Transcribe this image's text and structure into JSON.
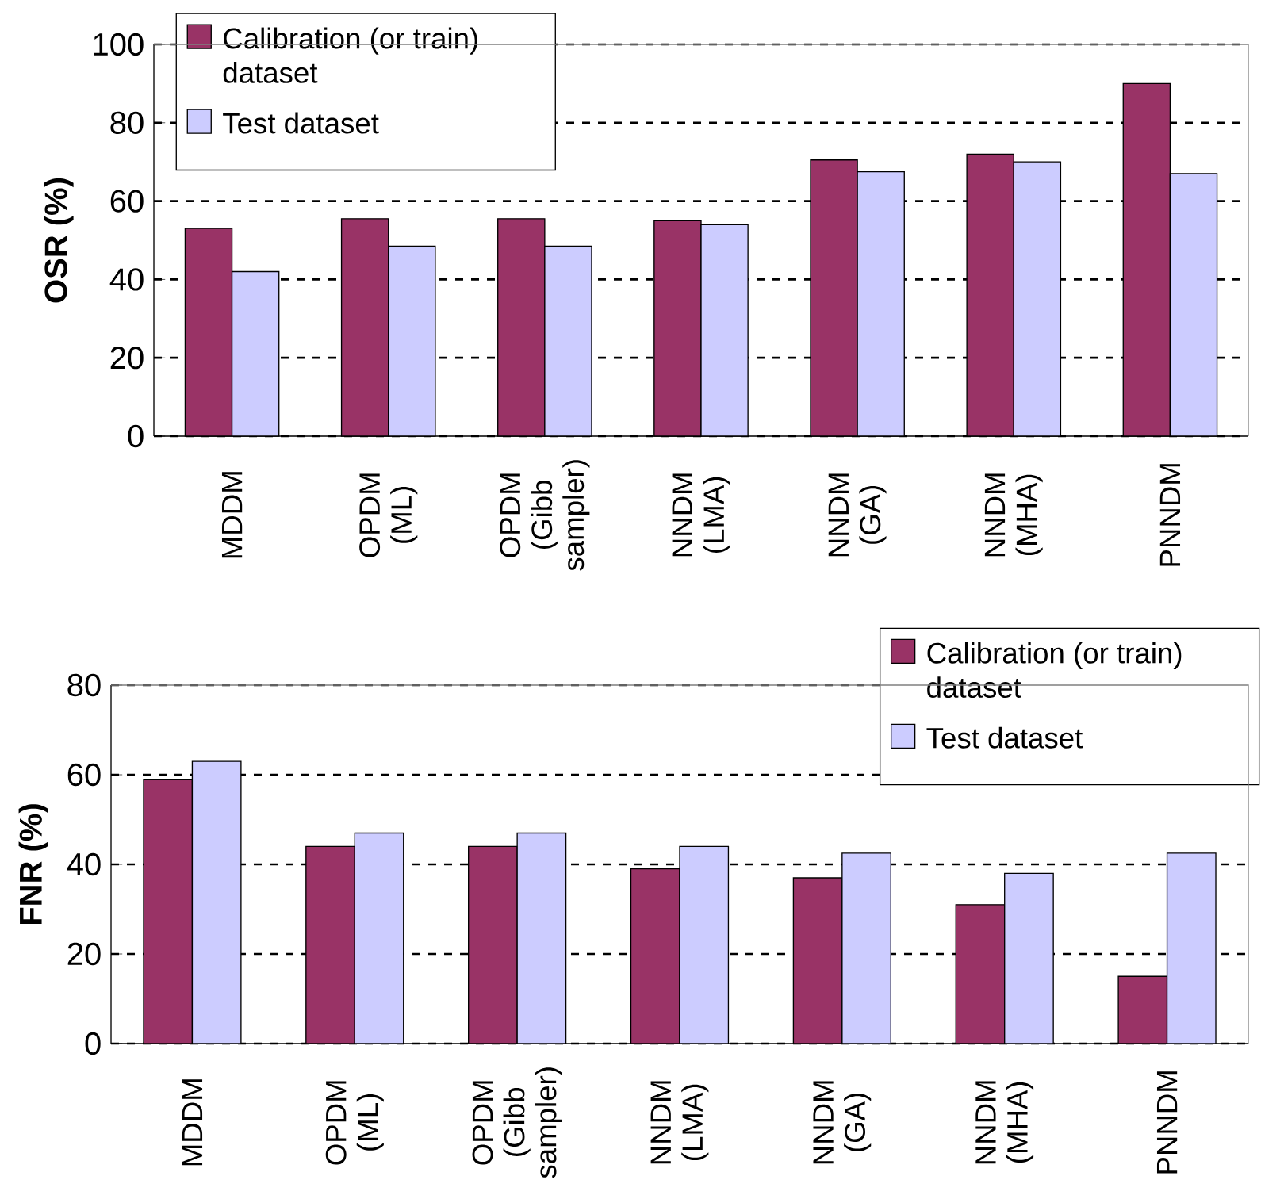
{
  "chart_data": [
    {
      "type": "bar",
      "ylabel": "OSR (%)",
      "categories": [
        "MDDM",
        "OPDM (ML)",
        "OPDM (Gibb sampler)",
        "NNDM (LMA)",
        "NNDM (GA)",
        "NNDM (MHA)",
        "PNNDM"
      ],
      "series": [
        {
          "name": "Calibration (or train) dataset",
          "color": "#993366",
          "values": [
            53,
            55.5,
            55.5,
            55,
            70.5,
            72,
            90
          ]
        },
        {
          "name": "Test dataset",
          "color": "#ccccff",
          "values": [
            42,
            48.5,
            48.5,
            54,
            67.5,
            70,
            67
          ]
        }
      ],
      "ylim": [
        0,
        100
      ],
      "yticks": [
        0,
        20,
        40,
        60,
        80,
        100
      ],
      "grid": "y",
      "legend": "top left"
    },
    {
      "type": "bar",
      "ylabel": "FNR (%)",
      "categories": [
        "MDDM",
        "OPDM (ML)",
        "OPDM (Gibb sampler)",
        "NNDM (LMA)",
        "NNDM (GA)",
        "NNDM (MHA)",
        "PNNDM"
      ],
      "series": [
        {
          "name": "Calibration (or train) dataset",
          "color": "#993366",
          "values": [
            59,
            44,
            44,
            39,
            37,
            31,
            15
          ]
        },
        {
          "name": "Test dataset",
          "color": "#ccccff",
          "values": [
            63,
            47,
            47,
            44,
            42.5,
            38,
            42.5
          ]
        }
      ],
      "ylim": [
        0,
        80
      ],
      "yticks": [
        0,
        20,
        40,
        60,
        80
      ],
      "grid": "y",
      "legend": "top right"
    }
  ]
}
